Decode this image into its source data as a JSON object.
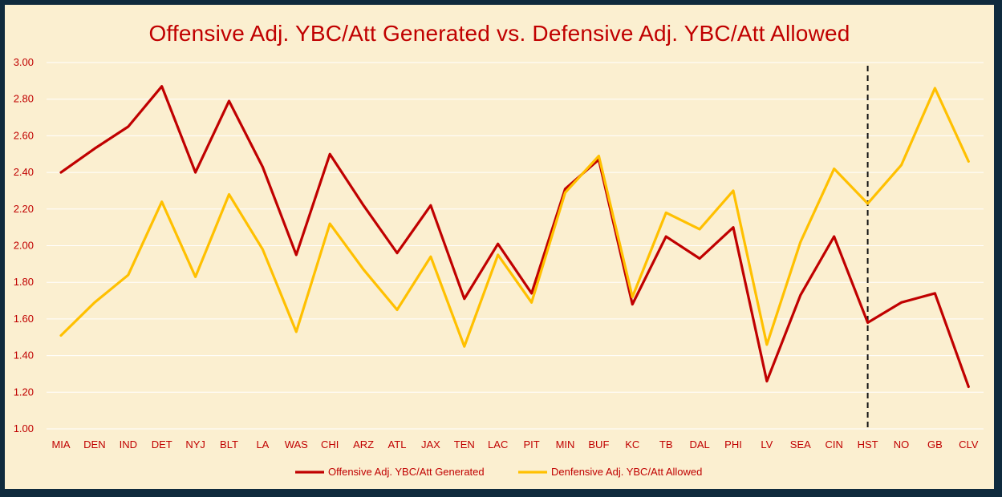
{
  "chart_data": {
    "type": "line",
    "title": "Offensive Adj. YBC/Att Generated vs. Defensive Adj. YBC/Att Allowed",
    "categories": [
      "MIA",
      "DEN",
      "IND",
      "DET",
      "NYJ",
      "BLT",
      "LA",
      "WAS",
      "CHI",
      "ARZ",
      "ATL",
      "JAX",
      "TEN",
      "LAC",
      "PIT",
      "MIN",
      "BUF",
      "KC",
      "TB",
      "DAL",
      "PHI",
      "LV",
      "SEA",
      "CIN",
      "HST",
      "NO",
      "GB",
      "CLV"
    ],
    "series": [
      {
        "name": "Offensive Adj. YBC/Att Generated",
        "color": "#c00000",
        "values": [
          2.4,
          2.53,
          2.65,
          2.87,
          2.4,
          2.79,
          2.43,
          1.95,
          2.5,
          2.22,
          1.96,
          2.22,
          1.71,
          2.01,
          1.74,
          2.31,
          2.47,
          1.68,
          2.05,
          1.93,
          2.1,
          1.26,
          1.73,
          2.05,
          1.58,
          1.69,
          1.74,
          1.23
        ]
      },
      {
        "name": "Denfensive Adj. YBC/Att Allowed",
        "color": "#ffc000",
        "values": [
          1.51,
          1.69,
          1.84,
          2.24,
          1.83,
          2.28,
          1.98,
          1.53,
          2.12,
          1.87,
          1.65,
          1.94,
          1.45,
          1.95,
          1.69,
          2.29,
          2.49,
          1.72,
          2.18,
          2.09,
          2.3,
          1.46,
          2.02,
          2.42,
          2.23,
          2.44,
          2.86,
          2.46
        ]
      }
    ],
    "ylim": [
      1.0,
      3.0
    ],
    "yticks": [
      "1.00",
      "1.20",
      "1.40",
      "1.60",
      "1.80",
      "2.00",
      "2.20",
      "2.40",
      "2.60",
      "2.80",
      "3.00"
    ],
    "grid": true,
    "legend_position": "bottom",
    "divider_after_category": "HST"
  }
}
